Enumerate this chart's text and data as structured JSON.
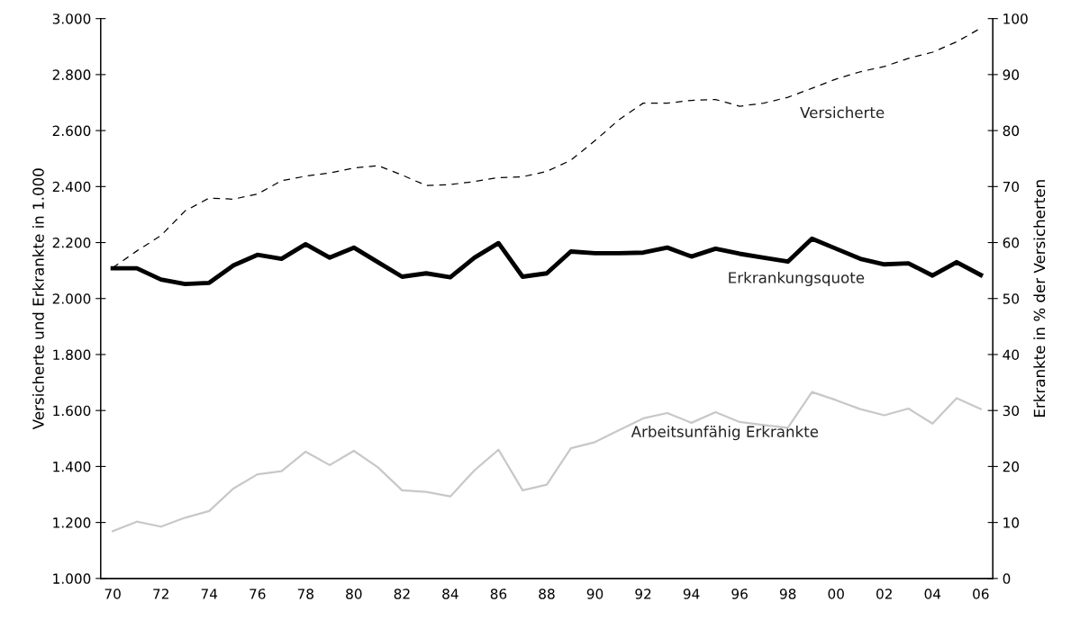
{
  "chart_data": {
    "type": "line",
    "ylabel": "Versicherte und Erkrankte in 1.000",
    "y2label": "Erkrankte in % der Versicherten",
    "categories": [
      "70",
      null,
      "72",
      null,
      "74",
      null,
      "76",
      null,
      "78",
      null,
      "80",
      null,
      "82",
      null,
      "84",
      null,
      "86",
      null,
      "88",
      null,
      "90",
      null,
      "92",
      null,
      "94",
      null,
      "96",
      null,
      "98",
      null,
      "00",
      null,
      "02",
      null,
      "04",
      null,
      "06"
    ],
    "ylim": [
      1000,
      3000
    ],
    "yticks": [
      {
        "value": 1000,
        "label": "1.000"
      },
      {
        "value": 1200,
        "label": "1.200"
      },
      {
        "value": 1400,
        "label": "1.400"
      },
      {
        "value": 1600,
        "label": "1.600"
      },
      {
        "value": 1800,
        "label": "1.800"
      },
      {
        "value": 2000,
        "label": "2.000"
      },
      {
        "value": 2200,
        "label": "2.200"
      },
      {
        "value": 2400,
        "label": "2.400"
      },
      {
        "value": 2600,
        "label": "2.600"
      },
      {
        "value": 2800,
        "label": "2.800"
      },
      {
        "value": 3000,
        "label": "3.000"
      }
    ],
    "y2lim": [
      0,
      100
    ],
    "y2ticks": [
      0,
      10,
      20,
      30,
      40,
      50,
      60,
      70,
      80,
      90,
      100
    ],
    "grid": false,
    "legend": false,
    "marker": "none",
    "series": [
      {
        "name": "Versicherte",
        "color": "#000000",
        "line_style": "dashed",
        "values": [
          2110,
          2170,
          2225,
          2313,
          2359,
          2355,
          2373,
          2421,
          2437,
          2449,
          2466,
          2475,
          2441,
          2404,
          2407,
          2418,
          2432,
          2435,
          2454,
          2494,
          2564,
          2639,
          2698,
          2698,
          2708,
          2711,
          2687,
          2698,
          2719,
          2751,
          2784,
          2810,
          2829,
          2858,
          2880,
          2917,
          2966
        ]
      },
      {
        "name": "Erkrankungsquote",
        "color": "#000000",
        "line_style": "solid",
        "axis": "y2",
        "values": [
          55.4,
          55.4,
          53.4,
          52.6,
          52.8,
          55.9,
          57.8,
          57.1,
          59.7,
          57.3,
          59.1,
          56.5,
          53.9,
          54.5,
          53.8,
          57.3,
          59.9,
          53.9,
          54.5,
          58.4,
          58.1,
          58.1,
          58.2,
          59.1,
          57.5,
          58.9,
          58.0,
          57.3,
          56.6,
          60.7,
          58.9,
          57.1,
          56.1,
          56.3,
          54.1,
          56.5,
          54.2
        ]
      },
      {
        "name": "Arbeitsunfähig Erkrankte",
        "color": "#c8c8c8",
        "line_style": "solid",
        "values": [
          1169,
          1203,
          1185,
          1217,
          1241,
          1321,
          1372,
          1383,
          1453,
          1405,
          1456,
          1397,
          1315,
          1309,
          1293,
          1386,
          1460,
          1315,
          1335,
          1465,
          1487,
          1530,
          1572,
          1591,
          1556,
          1594,
          1559,
          1548,
          1538,
          1666,
          1637,
          1605,
          1583,
          1607,
          1553,
          1644,
          1605
        ]
      }
    ]
  }
}
